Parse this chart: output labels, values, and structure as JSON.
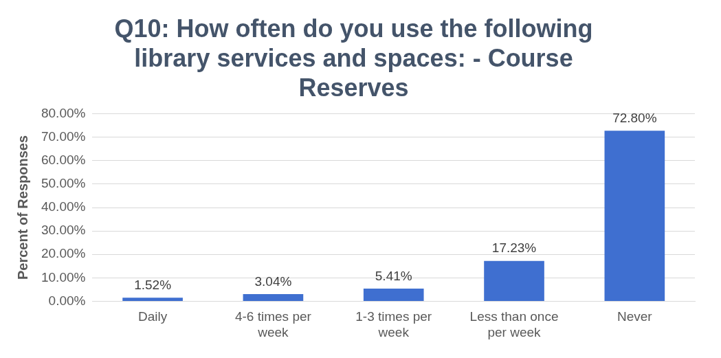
{
  "chart_data": {
    "type": "bar",
    "title": "Q10: How often do you use the following library services and spaces: - Course Reserves",
    "ylabel": "Percent of Responses",
    "categories": [
      "Daily",
      "4-6 times per week",
      "1-3 times per week",
      "Less than once per week",
      "Never"
    ],
    "values": [
      1.52,
      3.04,
      5.41,
      17.23,
      72.8
    ],
    "value_labels": [
      "1.52%",
      "3.04%",
      "5.41%",
      "17.23%",
      "72.80%"
    ],
    "color": "#3f6fd0",
    "ylim": [
      0,
      80
    ],
    "yticks": [
      {
        "value": 0,
        "label": "0.00%"
      },
      {
        "value": 10,
        "label": "10.00%"
      },
      {
        "value": 20,
        "label": "20.00%"
      },
      {
        "value": 30,
        "label": "30.00%"
      },
      {
        "value": 40,
        "label": "40.00%"
      },
      {
        "value": 50,
        "label": "50.00%"
      },
      {
        "value": 60,
        "label": "60.00%"
      },
      {
        "value": 70,
        "label": "70.00%"
      },
      {
        "value": 80,
        "label": "80.00%"
      }
    ],
    "grid": "y",
    "legend": false
  }
}
